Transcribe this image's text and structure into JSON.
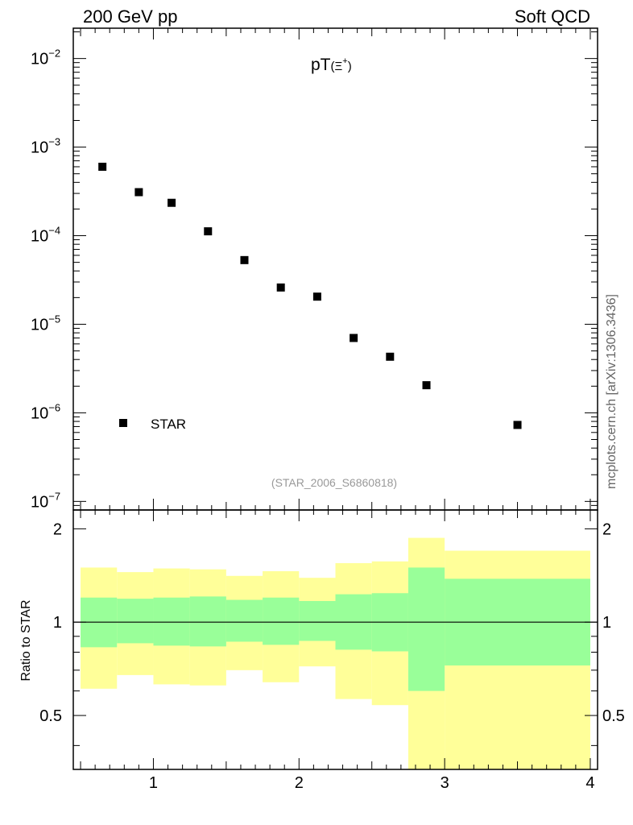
{
  "header": {
    "left": "200 GeV pp",
    "right": "Soft QCD"
  },
  "side_label": "mcplots.cern.ch [arXiv:1306.3436]",
  "analysis_tag": "(STAR_2006_S6860818)",
  "colors": {
    "band_outer": "#ffff99",
    "band_inner": "#99ff99",
    "marker": "#000000",
    "tag": "#999999"
  },
  "chart_data": [
    {
      "type": "scatter",
      "title_main": "pT",
      "title_particle": "(Ξ",
      "title_charge": "+",
      "title_close": ")",
      "yscale": "log",
      "xlim": [
        0.45,
        4.05
      ],
      "ylim": [
        8e-08,
        0.022
      ],
      "ytick_labels": [
        {
          "exp": -2,
          "base": "10",
          "sup": "−2"
        },
        {
          "exp": -3,
          "base": "10",
          "sup": "−3"
        },
        {
          "exp": -4,
          "base": "10",
          "sup": "−4"
        },
        {
          "exp": -5,
          "base": "10",
          "sup": "−5"
        },
        {
          "exp": -6,
          "base": "10",
          "sup": "−6"
        },
        {
          "exp": -7,
          "base": "10",
          "sup": "−7"
        }
      ],
      "series": [
        {
          "name": "STAR",
          "x": [
            0.65,
            0.9,
            1.125,
            1.375,
            1.625,
            1.875,
            2.125,
            2.375,
            2.625,
            2.875,
            3.5
          ],
          "y": [
            0.0006,
            0.00031,
            0.000235,
            0.000112,
            5.3e-05,
            2.6e-05,
            2.05e-05,
            7e-06,
            4.3e-06,
            2.05e-06,
            7.3e-07
          ]
        }
      ],
      "legend_position": "bottom-left"
    },
    {
      "type": "area",
      "ylabel": "Ratio to STAR",
      "xlim": [
        0.45,
        4.05
      ],
      "ylim": [
        0.335,
        2.3
      ],
      "reference_line": 1,
      "ytick_labels": [
        "0.5",
        "1",
        "2"
      ],
      "ytick_values": [
        0.5,
        1,
        2
      ],
      "xtick_labels": [
        "1",
        "2",
        "3",
        "4"
      ],
      "xtick_values": [
        1,
        2,
        3,
        4
      ],
      "bins": [
        {
          "lo": 0.5,
          "hi": 0.75,
          "inner": [
            0.83,
            1.2
          ],
          "outer": [
            0.61,
            1.5
          ]
        },
        {
          "lo": 0.75,
          "hi": 1.0,
          "inner": [
            0.855,
            1.19
          ],
          "outer": [
            0.675,
            1.45
          ]
        },
        {
          "lo": 1.0,
          "hi": 1.25,
          "inner": [
            0.84,
            1.2
          ],
          "outer": [
            0.63,
            1.49
          ]
        },
        {
          "lo": 1.25,
          "hi": 1.5,
          "inner": [
            0.835,
            1.21
          ],
          "outer": [
            0.625,
            1.48
          ]
        },
        {
          "lo": 1.5,
          "hi": 1.75,
          "inner": [
            0.865,
            1.18
          ],
          "outer": [
            0.7,
            1.41
          ]
        },
        {
          "lo": 1.75,
          "hi": 2.0,
          "inner": [
            0.845,
            1.2
          ],
          "outer": [
            0.64,
            1.46
          ]
        },
        {
          "lo": 2.0,
          "hi": 2.25,
          "inner": [
            0.87,
            1.17
          ],
          "outer": [
            0.72,
            1.39
          ]
        },
        {
          "lo": 2.25,
          "hi": 2.5,
          "inner": [
            0.815,
            1.23
          ],
          "outer": [
            0.565,
            1.55
          ]
        },
        {
          "lo": 2.5,
          "hi": 2.75,
          "inner": [
            0.805,
            1.24
          ],
          "outer": [
            0.54,
            1.57
          ]
        },
        {
          "lo": 2.75,
          "hi": 3.0,
          "inner": [
            0.6,
            1.5
          ],
          "outer": [
            0.335,
            1.87
          ]
        },
        {
          "lo": 3.0,
          "hi": 4.0,
          "inner": [
            0.725,
            1.38
          ],
          "outer": [
            0.335,
            1.7
          ]
        }
      ]
    }
  ]
}
